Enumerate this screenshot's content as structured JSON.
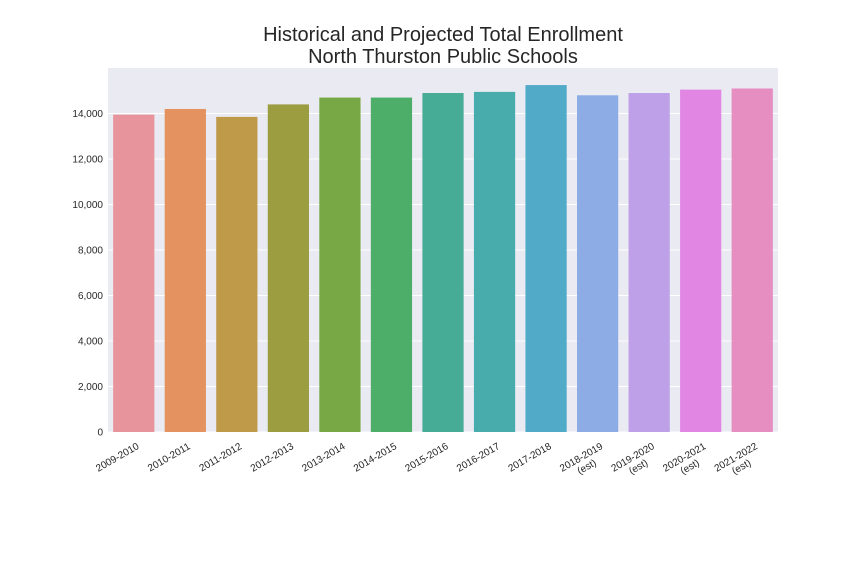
{
  "chart_data": {
    "type": "bar",
    "title_lines": [
      "Historical and Projected Total Enrollment",
      "North Thurston Public Schools"
    ],
    "xlabel": "",
    "ylabel": "",
    "ylim": [
      0,
      16000
    ],
    "yticks": [
      0,
      2000,
      4000,
      6000,
      8000,
      10000,
      12000,
      14000
    ],
    "ytick_labels": [
      "0",
      "2,000",
      "4,000",
      "6,000",
      "8,000",
      "10,000",
      "12,000",
      "14,000"
    ],
    "grid": true,
    "categories": [
      [
        "2009-2010"
      ],
      [
        "2010-2011"
      ],
      [
        "2011-2012"
      ],
      [
        "2012-2013"
      ],
      [
        "2013-2014"
      ],
      [
        "2014-2015"
      ],
      [
        "2015-2016"
      ],
      [
        "2016-2017"
      ],
      [
        "2017-2018"
      ],
      [
        "2018-2019",
        "(est)"
      ],
      [
        "2019-2020",
        "(est)"
      ],
      [
        "2020-2021",
        "(est)"
      ],
      [
        "2021-2022",
        "(est)"
      ]
    ],
    "values": [
      13950,
      14200,
      13850,
      14400,
      14700,
      14700,
      14900,
      14950,
      15250,
      14800,
      14900,
      15050,
      15100
    ],
    "colors": [
      "#e8949c",
      "#e4925f",
      "#bf9a48",
      "#9c9d41",
      "#77a845",
      "#4cae68",
      "#46ac95",
      "#48acad",
      "#50aac8",
      "#8dace6",
      "#bda0e7",
      "#e286e4",
      "#e68dc1"
    ],
    "background_color": "#eaeaf2",
    "grid_color": "#ffffff"
  }
}
